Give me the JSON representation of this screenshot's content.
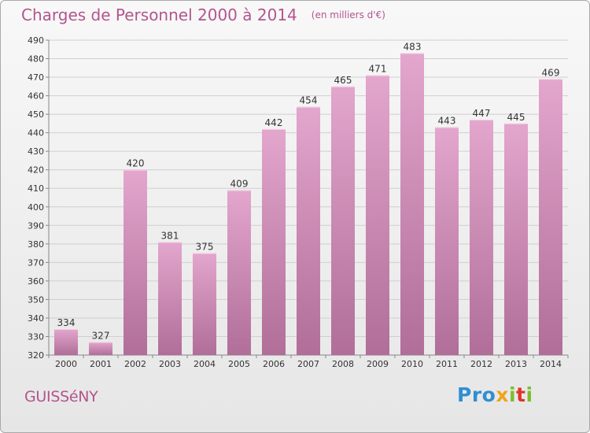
{
  "header": {
    "title": "Charges de Personnel 2000 à 2014",
    "unit": "(en milliers d'€)"
  },
  "footer": {
    "city": "GUISSéNY",
    "logo": {
      "p1": "Pro",
      "p2": "x",
      "p3": "i",
      "p4": "t",
      "p5": "i"
    }
  },
  "colors": {
    "bar_top": "#e3a6cd",
    "bar_bottom": "#b06e98",
    "title": "#b3558d",
    "grid": "#cfcfcf"
  },
  "chart_data": {
    "type": "bar",
    "title": "Charges de Personnel 2000 à 2014",
    "subtitle": "(en milliers d'€)",
    "categories": [
      "2000",
      "2001",
      "2002",
      "2003",
      "2004",
      "2005",
      "2006",
      "2007",
      "2008",
      "2009",
      "2010",
      "2011",
      "2012",
      "2013",
      "2014"
    ],
    "values": [
      334,
      327,
      420,
      381,
      375,
      409,
      442,
      454,
      465,
      471,
      483,
      443,
      447,
      445,
      469
    ],
    "ylim": [
      320,
      490
    ],
    "ytick_step": 10,
    "yticks": [
      320,
      330,
      340,
      350,
      360,
      370,
      380,
      390,
      400,
      410,
      420,
      430,
      440,
      450,
      460,
      470,
      480,
      490
    ],
    "grid": true,
    "legend": "none"
  }
}
